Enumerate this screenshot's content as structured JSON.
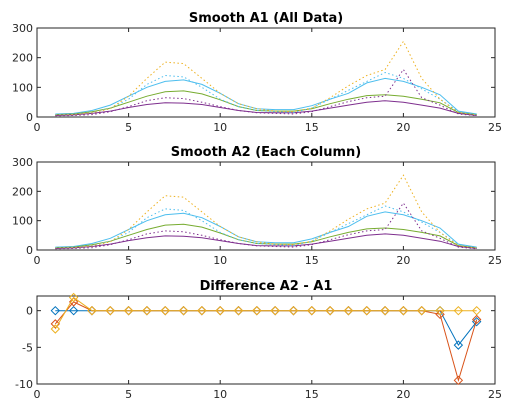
{
  "chart_data": [
    {
      "type": "line",
      "title": "Smooth A1 (All Data)",
      "xlim": [
        0,
        25
      ],
      "ylim": [
        0,
        300
      ],
      "xticks": [
        0,
        5,
        10,
        15,
        20,
        25
      ],
      "yticks": [
        0,
        100,
        200,
        300
      ],
      "grid": false,
      "x": [
        1,
        2,
        3,
        4,
        5,
        6,
        7,
        8,
        9,
        10,
        11,
        12,
        13,
        14,
        15,
        16,
        17,
        18,
        19,
        20,
        21,
        22,
        23,
        24
      ],
      "series": [
        {
          "color": "#4DBEEE",
          "style": "solid",
          "values": [
            10,
            12,
            22,
            40,
            70,
            100,
            120,
            125,
            110,
            80,
            45,
            28,
            25,
            25,
            38,
            60,
            80,
            115,
            130,
            120,
            100,
            75,
            20,
            10
          ]
        },
        {
          "color": "#77AC30",
          "style": "solid",
          "values": [
            8,
            10,
            18,
            30,
            50,
            70,
            85,
            88,
            78,
            58,
            35,
            22,
            20,
            20,
            28,
            45,
            60,
            72,
            75,
            70,
            60,
            48,
            15,
            8
          ]
        },
        {
          "color": "#7E2F8E",
          "style": "solid",
          "values": [
            5,
            7,
            12,
            20,
            32,
            42,
            48,
            47,
            42,
            32,
            22,
            15,
            14,
            14,
            20,
            30,
            40,
            50,
            55,
            50,
            40,
            30,
            12,
            5
          ]
        },
        {
          "color": "#4DBEEE",
          "style": "dotted",
          "values": [
            8,
            9,
            15,
            30,
            60,
            110,
            140,
            135,
            100,
            60,
            35,
            22,
            18,
            15,
            30,
            60,
            90,
            120,
            150,
            130,
            95,
            60,
            18,
            8
          ]
        },
        {
          "color": "#EDB120",
          "style": "dotted",
          "values": [
            6,
            8,
            14,
            28,
            70,
            130,
            185,
            180,
            130,
            80,
            45,
            28,
            20,
            18,
            30,
            65,
            105,
            140,
            160,
            255,
            130,
            60,
            15,
            6
          ]
        },
        {
          "color": "#7E2F8E",
          "style": "dotted",
          "values": [
            4,
            5,
            8,
            18,
            35,
            55,
            65,
            62,
            50,
            35,
            22,
            14,
            12,
            10,
            18,
            35,
            52,
            65,
            70,
            160,
            65,
            40,
            10,
            4
          ]
        }
      ]
    },
    {
      "type": "line",
      "title": "Smooth A2 (Each Column)",
      "xlim": [
        0,
        25
      ],
      "ylim": [
        0,
        300
      ],
      "xticks": [
        0,
        5,
        10,
        15,
        20,
        25
      ],
      "yticks": [
        0,
        100,
        200,
        300
      ],
      "grid": false,
      "x": [
        1,
        2,
        3,
        4,
        5,
        6,
        7,
        8,
        9,
        10,
        11,
        12,
        13,
        14,
        15,
        16,
        17,
        18,
        19,
        20,
        21,
        22,
        23,
        24
      ],
      "series": [
        {
          "color": "#4DBEEE",
          "style": "solid",
          "values": [
            10,
            12,
            22,
            40,
            70,
            100,
            120,
            125,
            110,
            80,
            45,
            28,
            25,
            25,
            38,
            60,
            80,
            115,
            130,
            120,
            100,
            75,
            20,
            10
          ]
        },
        {
          "color": "#77AC30",
          "style": "solid",
          "values": [
            8,
            10,
            18,
            30,
            50,
            70,
            85,
            88,
            78,
            58,
            35,
            22,
            20,
            20,
            28,
            45,
            60,
            72,
            75,
            70,
            60,
            48,
            15,
            8
          ]
        },
        {
          "color": "#7E2F8E",
          "style": "solid",
          "values": [
            5,
            7,
            12,
            20,
            32,
            42,
            48,
            47,
            42,
            32,
            22,
            15,
            14,
            14,
            20,
            30,
            40,
            50,
            55,
            50,
            40,
            30,
            12,
            5
          ]
        },
        {
          "color": "#4DBEEE",
          "style": "dotted",
          "values": [
            8,
            9,
            15,
            30,
            60,
            110,
            140,
            135,
            100,
            60,
            35,
            22,
            18,
            15,
            30,
            60,
            90,
            120,
            150,
            130,
            95,
            60,
            18,
            8
          ]
        },
        {
          "color": "#EDB120",
          "style": "dotted",
          "values": [
            6,
            8,
            14,
            28,
            70,
            130,
            185,
            180,
            130,
            80,
            45,
            28,
            20,
            18,
            30,
            65,
            105,
            140,
            160,
            255,
            130,
            60,
            15,
            6
          ]
        },
        {
          "color": "#7E2F8E",
          "style": "dotted",
          "values": [
            4,
            5,
            8,
            18,
            35,
            55,
            65,
            62,
            50,
            35,
            22,
            14,
            12,
            10,
            18,
            35,
            52,
            65,
            70,
            160,
            65,
            40,
            10,
            4
          ]
        }
      ]
    },
    {
      "type": "line",
      "title": "Difference A2 - A1",
      "xlim": [
        0,
        25
      ],
      "ylim": [
        -10,
        2
      ],
      "xticks": [
        0,
        5,
        10,
        15,
        20,
        25
      ],
      "yticks": [
        -10,
        -5,
        0
      ],
      "grid": false,
      "markers": "diamond",
      "x": [
        1,
        2,
        3,
        4,
        5,
        6,
        7,
        8,
        9,
        10,
        11,
        12,
        13,
        14,
        15,
        16,
        17,
        18,
        19,
        20,
        21,
        22,
        23,
        24
      ],
      "series": [
        {
          "color": "#0072BD",
          "values": [
            0,
            0,
            0,
            0,
            0,
            0,
            0,
            0,
            0,
            0,
            0,
            0,
            0,
            0,
            0,
            0,
            0,
            0,
            0,
            0,
            0,
            0,
            -4.7,
            -1.5
          ]
        },
        {
          "color": "#D95319",
          "values": [
            -1.8,
            1.2,
            0,
            0,
            0,
            0,
            0,
            0,
            0,
            0,
            0,
            0,
            0,
            0,
            0,
            0,
            0,
            0,
            0,
            0,
            0,
            -0.5,
            -9.5,
            -1.2
          ]
        },
        {
          "color": "#EDB120",
          "values": [
            -2.5,
            1.8,
            0,
            0,
            0,
            0,
            0,
            0,
            0,
            0,
            0,
            0,
            0,
            0,
            0,
            0,
            0,
            0,
            0,
            0,
            0,
            0,
            0,
            0
          ]
        }
      ]
    }
  ]
}
